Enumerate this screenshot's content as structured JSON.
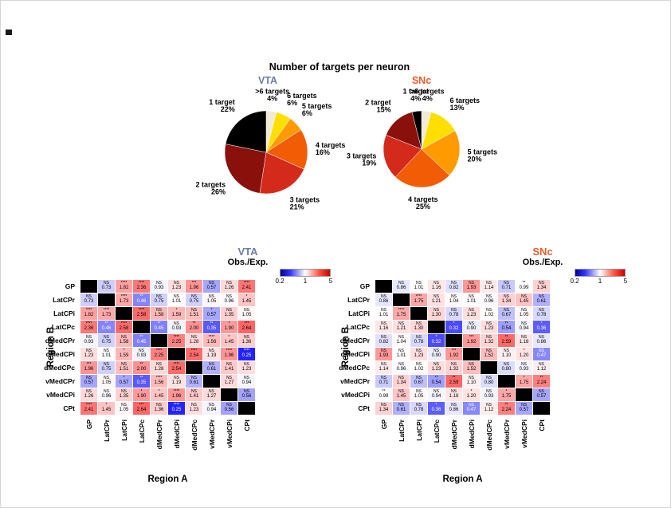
{
  "figure_title": "Number of targets per neuron",
  "chart_data": [
    {
      "type": "pie",
      "name": "VTA",
      "title": "VTA",
      "title_color": "#6b7ca6",
      "slices": [
        {
          "label": ">6 targets",
          "pct": 4,
          "color": "#f0ead6"
        },
        {
          "label": "6 targets",
          "pct": 6,
          "color": "#ffdf00"
        },
        {
          "label": "5 targets",
          "pct": 6,
          "color": "#ff9b00"
        },
        {
          "label": "4 targets",
          "pct": 16,
          "color": "#f25c05"
        },
        {
          "label": "3 targets",
          "pct": 21,
          "color": "#d42a1b"
        },
        {
          "label": "2 targets",
          "pct": 26,
          "color": "#8a100c"
        },
        {
          "label": "1 target",
          "pct": 22,
          "color": "#000000"
        }
      ]
    },
    {
      "type": "pie",
      "name": "SNc",
      "title": "SNc",
      "title_color": "#f05a28",
      "slices": [
        {
          "label": ">6 targets",
          "pct": 4,
          "color": "#f0ead6"
        },
        {
          "label": "6 targets",
          "pct": 13,
          "color": "#ffdf00"
        },
        {
          "label": "5 targets",
          "pct": 20,
          "color": "#ff9b00"
        },
        {
          "label": "4 targets",
          "pct": 25,
          "color": "#f25c05"
        },
        {
          "label": "3 targets",
          "pct": 19,
          "color": "#d42a1b"
        },
        {
          "label": "2 target",
          "pct": 15,
          "color": "#8a100c"
        },
        {
          "label": "1 target",
          "pct": 4,
          "color": "#000000"
        }
      ]
    },
    {
      "type": "heatmap",
      "name": "VTA",
      "title": "VTA",
      "title_color": "#6b7ca6",
      "subtitle": "Obs./Exp.",
      "xlabel": "Region A",
      "ylabel": "Region B",
      "regions": [
        "GP",
        "LatCPr",
        "LatCPi",
        "LatCPc",
        "dMedCPr",
        "dMedCPi",
        "dMedCPc",
        "vMedCPr",
        "vMedCPi",
        "CPt"
      ],
      "colorbar": {
        "min": 0.2,
        "mid": 1,
        "max": 5,
        "ticks": [
          "0.2",
          "1",
          "5"
        ]
      },
      "cells": [
        [
          null,
          {
            "s": "NS",
            "v": 0.73
          },
          {
            "s": "****",
            "v": 1.82
          },
          {
            "s": "****",
            "v": 2.36
          },
          {
            "s": "NS",
            "v": 0.93
          },
          {
            "s": "NS",
            "v": 1.23
          },
          {
            "s": "***",
            "v": 1.96
          },
          {
            "s": "NS",
            "v": 0.57
          },
          {
            "s": "NS",
            "v": 1.26
          },
          {
            "s": "****",
            "v": 2.41
          }
        ],
        [
          {
            "s": "NS",
            "v": 0.73
          },
          null,
          {
            "s": "****",
            "v": 1.73
          },
          {
            "s": "**",
            "v": 0.46
          },
          {
            "s": "NS",
            "v": 0.75
          },
          {
            "s": "NS",
            "v": 1.01
          },
          {
            "s": "NS",
            "v": 0.75
          },
          {
            "s": "NS",
            "v": 1.05
          },
          {
            "s": "NS",
            "v": 0.96
          },
          {
            "s": "*",
            "v": 1.45
          }
        ],
        [
          {
            "s": "****",
            "v": 1.82
          },
          {
            "s": "****",
            "v": 1.73
          },
          null,
          {
            "s": "****",
            "v": 2.58
          },
          {
            "s": "NS",
            "v": 1.58
          },
          {
            "s": "*",
            "v": 1.59
          },
          {
            "s": "NS",
            "v": 1.51
          },
          {
            "s": "*",
            "v": 0.57
          },
          {
            "s": "NS",
            "v": 1.35
          },
          {
            "s": "NS",
            "v": 1.05
          }
        ],
        [
          {
            "s": "****",
            "v": 2.36
          },
          {
            "s": "**",
            "v": 0.46
          },
          {
            "s": "****",
            "v": 2.58
          },
          null,
          {
            "s": "**",
            "v": 0.45
          },
          {
            "s": "NS",
            "v": 0.93
          },
          {
            "s": "**",
            "v": 2.0
          },
          {
            "s": "**",
            "v": 0.35
          },
          {
            "s": "*",
            "v": 1.9
          },
          {
            "s": "***",
            "v": 2.64
          }
        ],
        [
          {
            "s": "NS",
            "v": 0.93
          },
          {
            "s": "NS",
            "v": 0.75
          },
          {
            "s": "NS",
            "v": 1.58
          },
          {
            "s": "**",
            "v": 0.45
          },
          null,
          {
            "s": "****",
            "v": 2.25
          },
          {
            "s": "NS",
            "v": 1.28
          },
          {
            "s": "****",
            "v": 1.56
          },
          {
            "s": "*",
            "v": 1.45
          },
          {
            "s": "NS",
            "v": 1.36
          }
        ],
        [
          {
            "s": "NS",
            "v": 1.23
          },
          {
            "s": "NS",
            "v": 1.01
          },
          {
            "s": "*",
            "v": 1.59
          },
          {
            "s": "NS",
            "v": 0.93
          },
          {
            "s": "****",
            "v": 2.25
          },
          null,
          {
            "s": "****",
            "v": 2.54
          },
          {
            "s": "NS",
            "v": 1.19
          },
          {
            "s": "****",
            "v": 1.96
          },
          {
            "s": "****",
            "v": 0.25
          }
        ],
        [
          {
            "s": "***",
            "v": 1.96
          },
          {
            "s": "NS",
            "v": 0.75
          },
          {
            "s": "NS",
            "v": 1.51
          },
          {
            "s": "**",
            "v": 2.0
          },
          {
            "s": "NS",
            "v": 1.28
          },
          {
            "s": "****",
            "v": 2.54
          },
          null,
          {
            "s": "NS",
            "v": 0.61
          },
          {
            "s": "NS",
            "v": 1.41
          },
          {
            "s": "NS",
            "v": 1.23
          }
        ],
        [
          {
            "s": "NS",
            "v": 0.57
          },
          {
            "s": "NS",
            "v": 1.05
          },
          {
            "s": "*",
            "v": 0.57
          },
          {
            "s": "**",
            "v": 0.35
          },
          {
            "s": "****",
            "v": 1.56
          },
          {
            "s": "NS",
            "v": 1.19
          },
          {
            "s": "NS",
            "v": 0.61
          },
          null,
          {
            "s": "NS",
            "v": 1.27
          },
          {
            "s": "NS",
            "v": 0.94
          }
        ],
        [
          {
            "s": "NS",
            "v": 1.26
          },
          {
            "s": "NS",
            "v": 0.96
          },
          {
            "s": "NS",
            "v": 1.35
          },
          {
            "s": "*",
            "v": 1.9
          },
          {
            "s": "*",
            "v": 1.45
          },
          {
            "s": "****",
            "v": 1.96
          },
          {
            "s": "NS",
            "v": 1.41
          },
          {
            "s": "NS",
            "v": 1.27
          },
          null,
          {
            "s": "NS",
            "v": 0.56
          }
        ],
        [
          {
            "s": "****",
            "v": 2.41
          },
          {
            "s": "*",
            "v": 1.45
          },
          {
            "s": "NS",
            "v": 1.05
          },
          {
            "s": "***",
            "v": 2.64
          },
          {
            "s": "NS",
            "v": 1.36
          },
          {
            "s": "****",
            "v": 0.25
          },
          {
            "s": "NS",
            "v": 1.23
          },
          {
            "s": "NS",
            "v": 0.94
          },
          {
            "s": "NS",
            "v": 0.56
          },
          null
        ]
      ]
    },
    {
      "type": "heatmap",
      "name": "SNc",
      "title": "SNc",
      "title_color": "#f05a28",
      "subtitle": "Obs./Exp.",
      "xlabel": "Region A",
      "ylabel": "Region B",
      "regions": [
        "GP",
        "LatCPr",
        "LatCPi",
        "LatCPc",
        "dMedCPr",
        "dMedCPi",
        "dMedCPc",
        "vMedCPr",
        "vMedCPi",
        "CPt"
      ],
      "colorbar": {
        "min": 0.2,
        "mid": 1,
        "max": 5,
        "ticks": [
          "0.2",
          "1",
          "5"
        ]
      },
      "cells": [
        [
          null,
          {
            "s": "NS",
            "v": 0.86
          },
          {
            "s": "NS",
            "v": 1.01
          },
          {
            "s": "NS",
            "v": 1.16
          },
          {
            "s": "NS",
            "v": 0.82
          },
          {
            "s": "NS",
            "v": 1.93
          },
          {
            "s": "NS",
            "v": 1.14
          },
          {
            "s": "NS",
            "v": 0.71
          },
          {
            "s": "**",
            "v": 0.99
          },
          {
            "s": "NS",
            "v": 1.34
          }
        ],
        [
          {
            "s": "NS",
            "v": 0.86
          },
          null,
          {
            "s": "****",
            "v": 1.75
          },
          {
            "s": "NS",
            "v": 1.21
          },
          {
            "s": "NS",
            "v": 1.04
          },
          {
            "s": "NS",
            "v": 1.01
          },
          {
            "s": "NS",
            "v": 0.96
          },
          {
            "s": "NS",
            "v": 1.34
          },
          {
            "s": "NS",
            "v": 1.45
          },
          {
            "s": "NS",
            "v": 0.61
          }
        ],
        [
          {
            "s": "NS",
            "v": 1.01
          },
          {
            "s": "****",
            "v": 1.75
          },
          null,
          {
            "s": "NS",
            "v": 1.3
          },
          {
            "s": "NS",
            "v": 0.78
          },
          {
            "s": "NS",
            "v": 1.23
          },
          {
            "s": "NS",
            "v": 1.02
          },
          {
            "s": "NS",
            "v": 0.67
          },
          {
            "s": "NS",
            "v": 1.05
          },
          {
            "s": "NS",
            "v": 0.78
          }
        ],
        [
          {
            "s": "NS",
            "v": 1.16
          },
          {
            "s": "NS",
            "v": 1.21
          },
          {
            "s": "NS",
            "v": 1.3
          },
          null,
          {
            "s": "*",
            "v": 0.32
          },
          {
            "s": "NS",
            "v": 0.9
          },
          {
            "s": "NS",
            "v": 1.23
          },
          {
            "s": "**",
            "v": 0.54
          },
          {
            "s": "NS",
            "v": 0.94
          },
          {
            "s": "*",
            "v": 0.36
          }
        ],
        [
          {
            "s": "NS",
            "v": 0.82
          },
          {
            "s": "NS",
            "v": 1.04
          },
          {
            "s": "NS",
            "v": 0.78
          },
          {
            "s": "*",
            "v": 0.32
          },
          null,
          {
            "s": "***",
            "v": 1.92
          },
          {
            "s": "NS",
            "v": 1.32
          },
          {
            "s": "**",
            "v": 2.59
          },
          {
            "s": "NS",
            "v": 1.18
          },
          {
            "s": "NS",
            "v": 0.86
          }
        ],
        [
          {
            "s": "NS",
            "v": 1.93
          },
          {
            "s": "NS",
            "v": 1.01
          },
          {
            "s": "NS",
            "v": 1.23
          },
          {
            "s": "NS",
            "v": 0.9
          },
          {
            "s": "***",
            "v": 1.92
          },
          null,
          {
            "s": "NS",
            "v": 1.52
          },
          {
            "s": "NS",
            "v": 1.1
          },
          {
            "s": "*",
            "v": 1.2
          },
          {
            "s": "NS",
            "v": 0.47
          }
        ],
        [
          {
            "s": "NS",
            "v": 1.14
          },
          {
            "s": "NS",
            "v": 0.96
          },
          {
            "s": "NS",
            "v": 1.02
          },
          {
            "s": "NS",
            "v": 1.23
          },
          {
            "s": "NS",
            "v": 1.32
          },
          {
            "s": "NS",
            "v": 1.52
          },
          null,
          {
            "s": "NS",
            "v": 0.8
          },
          {
            "s": "NS",
            "v": 0.93
          },
          {
            "s": "NS",
            "v": 1.12
          }
        ],
        [
          {
            "s": "NS",
            "v": 0.71
          },
          {
            "s": "NS",
            "v": 1.34
          },
          {
            "s": "NS",
            "v": 0.67
          },
          {
            "s": "**",
            "v": 0.54
          },
          {
            "s": "**",
            "v": 2.59
          },
          {
            "s": "NS",
            "v": 1.1
          },
          {
            "s": "NS",
            "v": 0.8
          },
          null,
          {
            "s": "*",
            "v": 1.75
          },
          {
            "s": "**",
            "v": 2.24
          }
        ],
        [
          {
            "s": "**",
            "v": 0.99
          },
          {
            "s": "NS",
            "v": 1.45
          },
          {
            "s": "NS",
            "v": 1.05
          },
          {
            "s": "NS",
            "v": 0.94
          },
          {
            "s": "NS",
            "v": 1.18
          },
          {
            "s": "*",
            "v": 1.2
          },
          {
            "s": "NS",
            "v": 0.93
          },
          {
            "s": "*",
            "v": 1.75
          },
          null,
          {
            "s": "NS",
            "v": 0.57
          }
        ],
        [
          {
            "s": "NS",
            "v": 1.34
          },
          {
            "s": "NS",
            "v": 0.61
          },
          {
            "s": "NS",
            "v": 0.78
          },
          {
            "s": "*",
            "v": 0.36
          },
          {
            "s": "NS",
            "v": 0.86
          },
          {
            "s": "NS",
            "v": 0.47
          },
          {
            "s": "NS",
            "v": 1.12
          },
          {
            "s": "**",
            "v": 2.24
          },
          {
            "s": "NS",
            "v": 0.57
          },
          null
        ]
      ]
    }
  ]
}
